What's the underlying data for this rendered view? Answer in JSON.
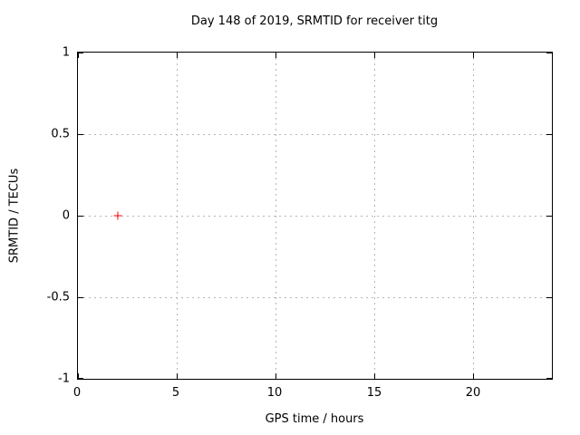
{
  "chart_data": {
    "type": "scatter",
    "title": "Day 148 of 2019, SRMTID for receiver titg",
    "xlabel": "GPS time / hours",
    "ylabel": "SRMTID / TECUs",
    "xlim": [
      0,
      24
    ],
    "ylim": [
      -1,
      1
    ],
    "xticks": [
      "0",
      "5",
      "10",
      "15",
      "20"
    ],
    "yticks": [
      "1",
      "0.5",
      "0",
      "-0.5",
      "-1"
    ],
    "grid": true,
    "legend_position": "none",
    "series": [
      {
        "name": "SRMTID",
        "marker": "plus",
        "color": "#ff0000",
        "points": [
          {
            "x": 2,
            "y": 0
          }
        ]
      }
    ],
    "colors": {
      "marker": "#ff0000",
      "grid": "#b5b5b5",
      "axis": "#000000",
      "background": "#ffffff"
    }
  }
}
